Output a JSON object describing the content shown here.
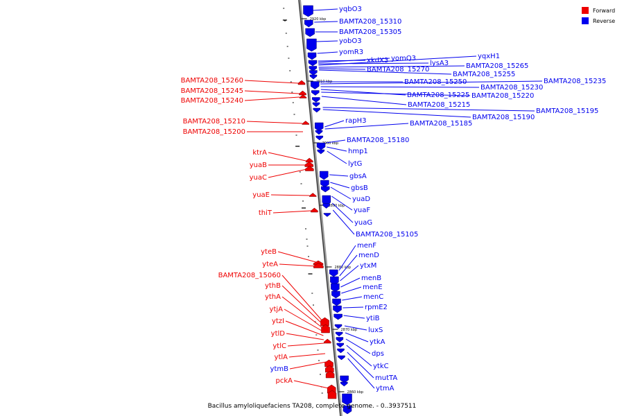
{
  "caption": "Bacillus amyloliquefaciens TA208, complete genome. - 0..3937511",
  "legend": [
    {
      "label": "Forward",
      "color": "#ee0000"
    },
    {
      "label": "Reverse",
      "color": "#0000ee"
    }
  ],
  "ticks": [
    "2920 kbp",
    "2910 kbp",
    "2900 kbp",
    "2890 kbp",
    "2880 kbp",
    "2870 kbp",
    "2860 kbp"
  ],
  "reverse_genes": [
    "yqbO3",
    "BAMTA208_15310",
    "BAMTA208_15305",
    "yobO3",
    "yomR3",
    "xkdX3",
    "yomQ3",
    "lysA3",
    "yqxH1",
    "BAMTA208_15265",
    "BAMTA208_15270",
    "BAMTA208_15255",
    "BAMTA208_15250",
    "BAMTA208_15235",
    "BAMTA208_15230",
    "BAMTA208_15225",
    "BAMTA208_15220",
    "BAMTA208_15215",
    "BAMTA208_15195",
    "BAMTA208_15190",
    "rapH3",
    "BAMTA208_15185",
    "BAMTA208_15180",
    "hmp1",
    "lytG",
    "gbsA",
    "gbsB",
    "yuaD",
    "yuaF",
    "yuaG",
    "BAMTA208_15105",
    "menF",
    "menD",
    "ytxM",
    "menB",
    "menE",
    "menC",
    "rpmE2",
    "ytiB",
    "luxS",
    "ytkA",
    "dps",
    "ytkC",
    "mutTA",
    "ytmA"
  ],
  "forward_genes": [
    "BAMTA208_15260",
    "BAMTA208_15245",
    "BAMTA208_15240",
    "BAMTA208_15210",
    "BAMTA208_15200",
    "ktrA",
    "yuaB",
    "yuaC",
    "yuaE",
    "thiT",
    "yteB",
    "yteA",
    "BAMTA208_15060",
    "ythB",
    "ythA",
    "ytjA",
    "ytzI",
    "ytlD",
    "ytlC",
    "ytlA",
    "ytmB",
    "pckA"
  ]
}
